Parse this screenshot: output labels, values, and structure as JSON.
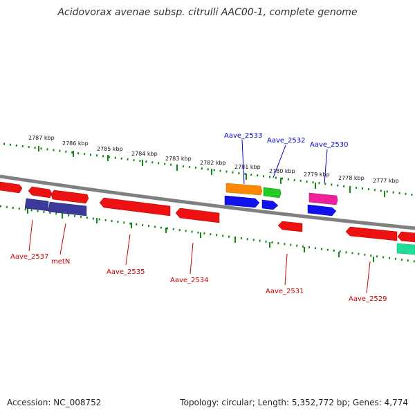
{
  "title": "Acidovorax avenae subsp. citrulli AAC00-1, complete genome",
  "footer": {
    "accession": "Accession: NC_008752",
    "summary": "Topology: circular; Length: 5,352,772 bp; Genes: 4,774"
  },
  "scale_labels": [
    "2787 kbp",
    "2786 kbp",
    "2785 kbp",
    "2784 kbp",
    "2783 kbp",
    "2782 kbp",
    "2781 kbp",
    "2780 kbp",
    "2779 kbp",
    "2778 kbp",
    "2777 kbp"
  ],
  "gene_labels_top": [
    "Aave_2533",
    "Aave_2532",
    "Aave_2530"
  ],
  "gene_labels_bottom": [
    "Aave_2537",
    "metN",
    "Aave_2535",
    "Aave_2534",
    "Aave_2531",
    "Aave_2529"
  ],
  "colors": {
    "backbone": "#808080",
    "red_gene": "#ee1111",
    "blue_gene": "#1111ee",
    "orange_gene": "#ff8800",
    "green_gene": "#22cc22",
    "pink_gene": "#ee2299",
    "navy_gene": "#3a3a9a",
    "teal_gene": "#22dd99",
    "scale_dots": "#118811",
    "top_label": "#0000cc",
    "bottom_label": "#cc0000"
  }
}
